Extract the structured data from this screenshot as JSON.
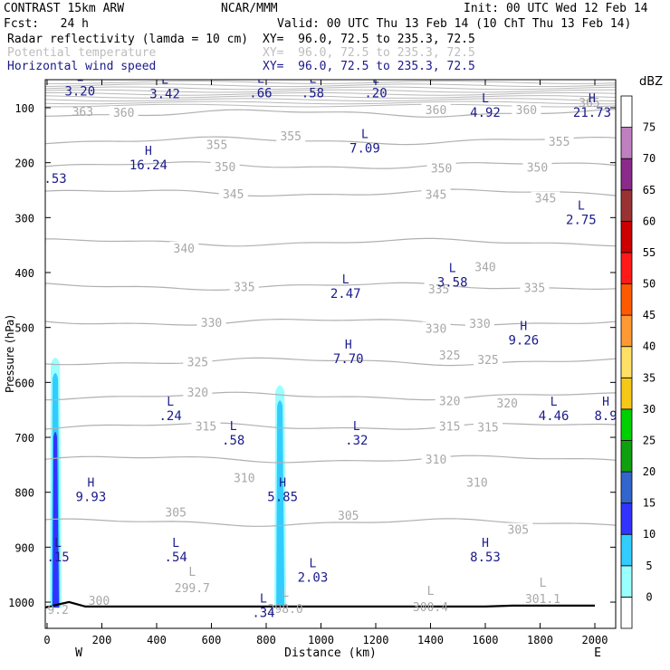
{
  "header": {
    "model": "CONTRAST 15km ARW",
    "forecast": "Fcst:   24 h",
    "center": "NCAR/MMM",
    "init": "Init: 00 UTC Wed 12 Feb 14",
    "valid": "Valid: 00 UTC Thu 13 Feb 14 (10 ChT Thu 13 Feb 14)",
    "fields": [
      {
        "name": "Radar reflectivity (lamda = 10 cm)",
        "xy": "XY=  96.0, 72.5 to 235.3, 72.5"
      },
      {
        "name": "Potential temperature",
        "xy": "XY=  96.0, 72.5 to 235.3, 72.5"
      },
      {
        "name": "Horizontal wind speed",
        "xy": "XY=  96.0, 72.5 to 235.3, 72.5"
      }
    ]
  },
  "chart_data": {
    "type": "cross-section",
    "xlabel": "Distance (km)",
    "ylabel": "Pressure (hPa)",
    "xlim": [
      0,
      2080
    ],
    "ylim": [
      1020,
      50
    ],
    "xticks": [
      0,
      200,
      400,
      600,
      800,
      1000,
      1200,
      1400,
      1600,
      1800,
      2000
    ],
    "yticks": [
      100,
      200,
      300,
      400,
      500,
      600,
      700,
      800,
      900,
      1000
    ],
    "x_end_labels": {
      "left": "W",
      "right": "E"
    },
    "colorbar": {
      "unit": "dBZ",
      "levels": [
        0,
        5,
        10,
        15,
        20,
        25,
        30,
        35,
        40,
        45,
        50,
        55,
        60,
        65,
        70,
        75
      ],
      "colors": [
        "#ffffff",
        "#99ffff",
        "#33ccff",
        "#3333ff",
        "#3366cc",
        "#0fa00f",
        "#00d000",
        "#f5c817",
        "#ffe066",
        "#ff9933",
        "#ff5a00",
        "#ff1a1a",
        "#cc0000",
        "#993333",
        "#8c2a8c",
        "#c080c0",
        "#ffffff"
      ]
    },
    "theta_contours": [
      {
        "value": 360,
        "p": 110,
        "labels": [
          [
            280,
            110
          ],
          [
            1420,
            105
          ],
          [
            1750,
            105
          ]
        ]
      },
      {
        "value": 355,
        "p": 160,
        "labels": [
          [
            620,
            168
          ],
          [
            890,
            153
          ],
          [
            1870,
            163
          ]
        ]
      },
      {
        "value": 350,
        "p": 205,
        "labels": [
          [
            650,
            209
          ],
          [
            1440,
            211
          ],
          [
            1790,
            210
          ]
        ]
      },
      {
        "value": 345,
        "p": 255,
        "labels": [
          [
            680,
            258
          ],
          [
            1420,
            259
          ],
          [
            1820,
            266
          ]
        ]
      },
      {
        "value": 340,
        "p": 345,
        "labels": [
          [
            500,
            357
          ],
          [
            1600,
            391
          ]
        ]
      },
      {
        "value": 335,
        "p": 425,
        "labels": [
          [
            720,
            427
          ],
          [
            1430,
            431
          ],
          [
            1780,
            429
          ]
        ]
      },
      {
        "value": 330,
        "p": 490,
        "labels": [
          [
            600,
            492
          ],
          [
            1420,
            503
          ],
          [
            1580,
            494
          ]
        ]
      },
      {
        "value": 325,
        "p": 562,
        "labels": [
          [
            550,
            564
          ],
          [
            1470,
            552
          ],
          [
            1610,
            560
          ]
        ]
      },
      {
        "value": 320,
        "p": 625,
        "labels": [
          [
            550,
            619
          ],
          [
            1470,
            635
          ],
          [
            1680,
            639
          ]
        ]
      },
      {
        "value": 315,
        "p": 680,
        "labels": [
          [
            580,
            681
          ],
          [
            1470,
            681
          ],
          [
            1610,
            683
          ]
        ]
      },
      {
        "value": 310,
        "p": 740,
        "labels": [
          [
            720,
            775
          ],
          [
            1420,
            741
          ],
          [
            1570,
            783
          ]
        ]
      },
      {
        "value": 305,
        "p": 855,
        "labels": [
          [
            470,
            838
          ],
          [
            1100,
            843
          ],
          [
            1720,
            869
          ]
        ]
      }
    ],
    "theta_minima": [
      {
        "label": "L",
        "value": "299.7",
        "x": 530,
        "p": 975
      },
      {
        "label": "L",
        "value": "298.0",
        "x": 870,
        "p": 1013
      },
      {
        "label": "L",
        "value": "300.4",
        "x": 1400,
        "p": 1010
      },
      {
        "label": "L",
        "value": "301.1",
        "x": 1810,
        "p": 995
      },
      {
        "label": "",
        "value": "9.2",
        "x": 40,
        "p": 1015
      },
      {
        "label": "",
        "value": "300",
        "x": 190,
        "p": 998
      },
      {
        "label": "",
        "value": "365",
        "x": 1980,
        "p": 92
      },
      {
        "label": "",
        "value": "363",
        "x": 130,
        "p": 108
      }
    ],
    "wind_extrema": [
      {
        "label": "L",
        "value": "3.20",
        "x": 120,
        "p": 68
      },
      {
        "label": "L",
        "value": "3.42",
        "x": 430,
        "p": 73
      },
      {
        "label": "L",
        "value": ".66",
        "x": 780,
        "p": 71
      },
      {
        "label": "L",
        "value": ".58",
        "x": 970,
        "p": 71
      },
      {
        "label": "L",
        "value": ".20",
        "x": 1200,
        "p": 71
      },
      {
        "label": "L",
        "value": "4.92",
        "x": 1600,
        "p": 107
      },
      {
        "label": "H",
        "value": "21.73",
        "x": 1990,
        "p": 107
      },
      {
        "label": "L",
        "value": "7.09",
        "x": 1160,
        "p": 172
      },
      {
        "label": "H",
        "value": "16.24",
        "x": 370,
        "p": 202
      },
      {
        "label": "",
        "value": ".53",
        "x": 30,
        "p": 227
      },
      {
        "label": "L",
        "value": "2.75",
        "x": 1950,
        "p": 302
      },
      {
        "label": "L",
        "value": "3.58",
        "x": 1480,
        "p": 416
      },
      {
        "label": "L",
        "value": "2.47",
        "x": 1090,
        "p": 436
      },
      {
        "label": "H",
        "value": "9.26",
        "x": 1740,
        "p": 521
      },
      {
        "label": "H",
        "value": "7.70",
        "x": 1100,
        "p": 555
      },
      {
        "label": "L",
        "value": ".24",
        "x": 450,
        "p": 659
      },
      {
        "label": "L",
        "value": "4.46",
        "x": 1850,
        "p": 659
      },
      {
        "label": "H",
        "value": "8.9",
        "x": 2040,
        "p": 659
      },
      {
        "label": "L",
        "value": ".58",
        "x": 680,
        "p": 703
      },
      {
        "label": "L",
        "value": ".32",
        "x": 1130,
        "p": 703
      },
      {
        "label": "H",
        "value": "9.93",
        "x": 160,
        "p": 806
      },
      {
        "label": "H",
        "value": "5.85",
        "x": 860,
        "p": 806
      },
      {
        "label": "L",
        "value": ".15",
        "x": 40,
        "p": 916
      },
      {
        "label": "L",
        "value": ".54",
        "x": 470,
        "p": 916
      },
      {
        "label": "H",
        "value": "8.53",
        "x": 1600,
        "p": 916
      },
      {
        "label": "L",
        "value": "2.03",
        "x": 970,
        "p": 953
      },
      {
        "label": "L",
        "value": ".34",
        "x": 790,
        "p": 1017
      }
    ],
    "reflectivity_cells": [
      {
        "x_center": 30,
        "p_top": 550,
        "p_bottom": 1010,
        "max_dbz": 20
      },
      {
        "x_center": 850,
        "p_top": 600,
        "p_bottom": 1010,
        "max_dbz": 10
      }
    ],
    "terrain": {
      "p": 1008
    }
  }
}
